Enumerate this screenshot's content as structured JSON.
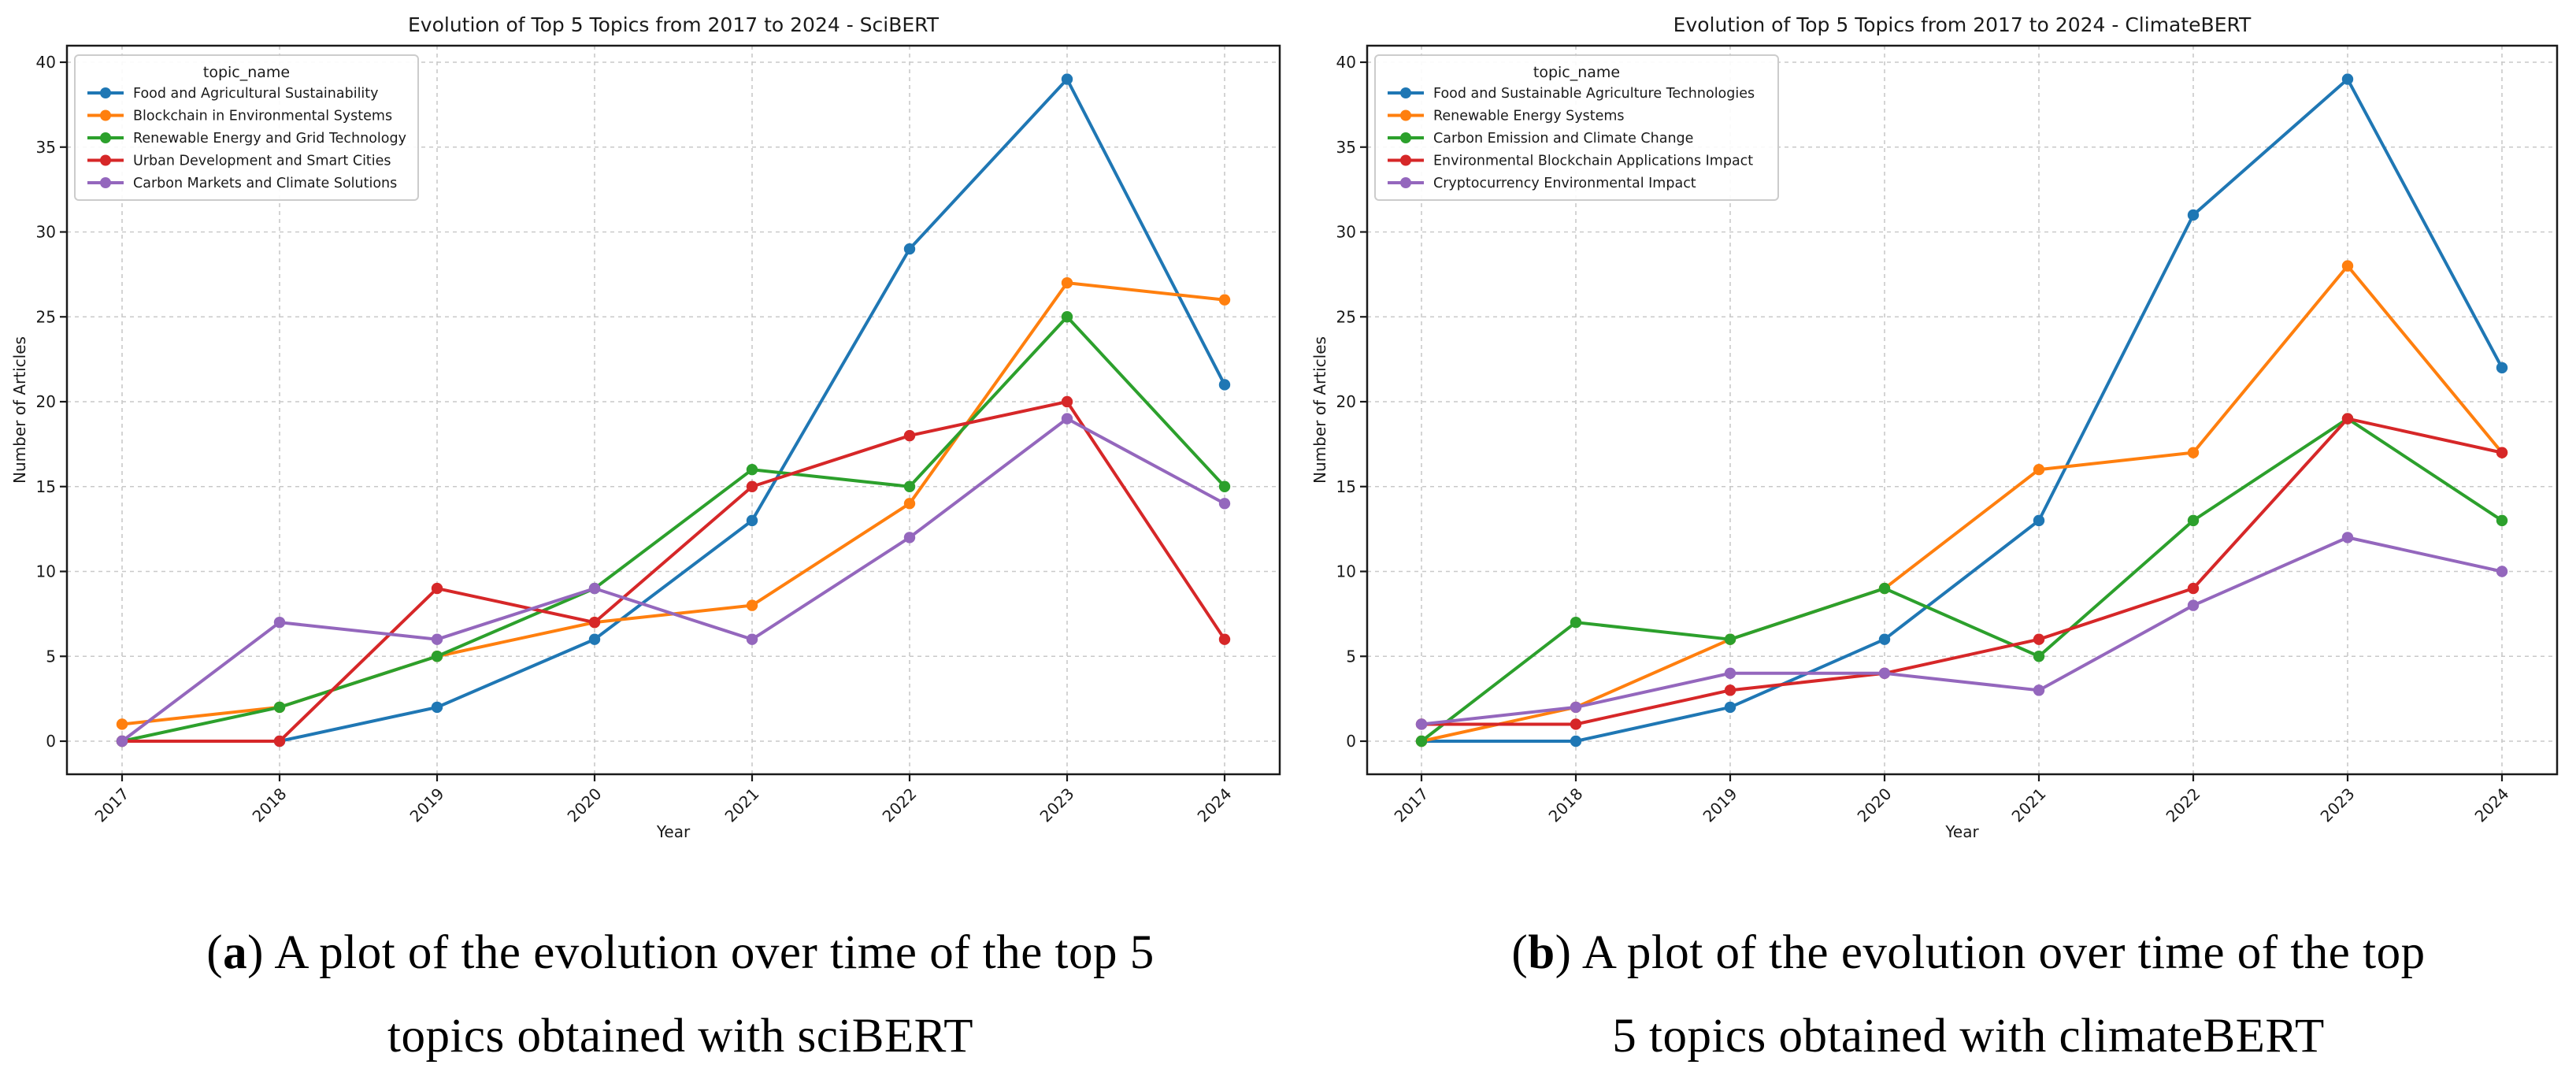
{
  "captions": [
    {
      "pre": "(",
      "letter": "a",
      "post": ")",
      "line1": "A plot of the evolution over time of the top 5",
      "line2": "topics obtained with sciBERT"
    },
    {
      "pre": "(",
      "letter": "b",
      "post": ")",
      "line1": "A plot of the evolution over time of the top",
      "line2": "5 topics obtained with climateBERT"
    }
  ],
  "chart_data": [
    {
      "type": "line",
      "title": "Evolution of Top 5 Topics from 2017 to 2024 - SciBERT",
      "xlabel": "Year",
      "ylabel": "Number of Articles",
      "legend_title": "topic_name",
      "legend_position": "upper-left",
      "grid": true,
      "x": [
        "2017",
        "2018",
        "2019",
        "2020",
        "2021",
        "2022",
        "2023",
        "2024"
      ],
      "yticks": [
        0,
        5,
        10,
        15,
        20,
        25,
        30,
        35,
        40
      ],
      "ylim": [
        -2,
        41
      ],
      "series": [
        {
          "name": "Food and Agricultural Sustainability",
          "color": "#1f77b4",
          "values": [
            0,
            0,
            2,
            6,
            13,
            29,
            39,
            21
          ]
        },
        {
          "name": "Blockchain in Environmental Systems",
          "color": "#ff7f0e",
          "values": [
            1,
            2,
            5,
            7,
            8,
            14,
            27,
            26
          ]
        },
        {
          "name": "Renewable Energy and Grid Technology",
          "color": "#2ca02c",
          "values": [
            0,
            2,
            5,
            9,
            16,
            15,
            25,
            15
          ]
        },
        {
          "name": "Urban Development and Smart Cities",
          "color": "#d62728",
          "values": [
            0,
            0,
            9,
            7,
            15,
            18,
            20,
            6
          ]
        },
        {
          "name": "Carbon Markets and Climate Solutions",
          "color": "#9467bd",
          "values": [
            0,
            7,
            6,
            9,
            6,
            12,
            19,
            14
          ]
        }
      ]
    },
    {
      "type": "line",
      "title": "Evolution of Top 5 Topics from 2017 to 2024 - ClimateBERT",
      "xlabel": "Year",
      "ylabel": "Number of Articles",
      "legend_title": "topic_name",
      "legend_position": "upper-left",
      "grid": true,
      "x": [
        "2017",
        "2018",
        "2019",
        "2020",
        "2021",
        "2022",
        "2023",
        "2024"
      ],
      "yticks": [
        0,
        5,
        10,
        15,
        20,
        25,
        30,
        35,
        40
      ],
      "ylim": [
        -2,
        41
      ],
      "series": [
        {
          "name": "Food and Sustainable Agriculture Technologies",
          "color": "#1f77b4",
          "values": [
            0,
            0,
            2,
            6,
            13,
            31,
            39,
            22
          ]
        },
        {
          "name": "Renewable Energy Systems",
          "color": "#ff7f0e",
          "values": [
            0,
            2,
            6,
            9,
            16,
            17,
            28,
            17
          ]
        },
        {
          "name": "Carbon Emission and Climate Change",
          "color": "#2ca02c",
          "values": [
            0,
            7,
            6,
            9,
            5,
            13,
            19,
            13
          ]
        },
        {
          "name": "Environmental Blockchain Applications Impact",
          "color": "#d62728",
          "values": [
            1,
            1,
            3,
            4,
            6,
            9,
            19,
            17
          ]
        },
        {
          "name": "Cryptocurrency Environmental Impact",
          "color": "#9467bd",
          "values": [
            1,
            2,
            4,
            4,
            3,
            8,
            12,
            10
          ]
        }
      ]
    }
  ]
}
